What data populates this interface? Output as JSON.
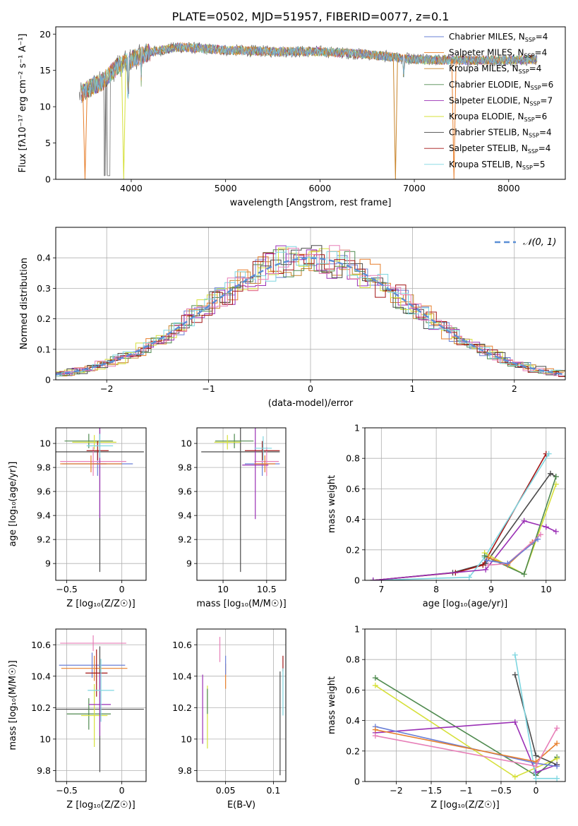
{
  "title": "PLATE=0502, MJD=51957, FIBERID=0077, z=0.1",
  "colors": {
    "c_miles": "#6a7fd6",
    "s_miles": "#e77f2c",
    "k_miles": "#c8842a",
    "c_elodie": "#4f8a4f",
    "s_elodie": "#9a2fb5",
    "k_elodie": "#d6e03a",
    "c_stelib": "#4a4a4a",
    "s_stelib": "#a31515",
    "k_stelib": "#7dd6e0",
    "pink": "#e77fb8",
    "green_bright": "#8fe05a",
    "normal": "#5b8fd6"
  },
  "chart_data": [
    {
      "id": "spectrum",
      "type": "line",
      "xlabel": "wavelength [Angstrom, rest frame]",
      "ylabel": "Flux [fλ10⁻¹⁷ erg cm⁻² s⁻¹ A⁻¹]",
      "xlim": [
        3200,
        8600
      ],
      "ylim": [
        0,
        21
      ],
      "xticks": [
        4000,
        5000,
        6000,
        7000,
        8000
      ],
      "yticks": [
        0,
        5,
        10,
        15,
        20
      ],
      "grid": false,
      "legend_position": "right",
      "series": [
        {
          "name": "Chabrier MILES, N_SSP=4",
          "label": "Chabrier MILES, N",
          "sub": "SSP",
          "tail": "=4",
          "color_key": "c_miles"
        },
        {
          "name": "Salpeter MILES, N_SSP=4",
          "label": "Salpeter MILES, N",
          "sub": "SSP",
          "tail": "=4",
          "color_key": "s_miles"
        },
        {
          "name": "Kroupa MILES, N_SSP=4",
          "label": "Kroupa MILES, N",
          "sub": "SSP",
          "tail": "=4",
          "color_key": "k_miles"
        },
        {
          "name": "Chabrier ELODIE, N_SSP=6",
          "label": "Chabrier ELODIE, N",
          "sub": "SSP",
          "tail": "=6",
          "color_key": "c_elodie"
        },
        {
          "name": "Salpeter ELODIE, N_SSP=7",
          "label": "Salpeter ELODIE, N",
          "sub": "SSP",
          "tail": "=7",
          "color_key": "s_elodie"
        },
        {
          "name": "Kroupa ELODIE, N_SSP=6",
          "label": "Kroupa ELODIE, N",
          "sub": "SSP",
          "tail": "=6",
          "color_key": "k_elodie"
        },
        {
          "name": "Chabrier STELIB, N_SSP=4",
          "label": "Chabrier STELIB, N",
          "sub": "SSP",
          "tail": "=4",
          "color_key": "c_stelib"
        },
        {
          "name": "Salpeter STELIB, N_SSP=4",
          "label": "Salpeter STELIB, N",
          "sub": "SSP",
          "tail": "=4",
          "color_key": "s_stelib"
        },
        {
          "name": "Kroupa STELIB, N_SSP=5",
          "label": "Kroupa STELIB, N",
          "sub": "SSP",
          "tail": "=5",
          "color_key": "k_stelib"
        }
      ],
      "data_sketch": {
        "observed_x": [
          3450,
          3550,
          3700,
          3850,
          4000,
          4200,
          4500,
          5000,
          5500,
          6000,
          6500,
          7000,
          7500,
          8000,
          8300
        ],
        "observed_y": [
          11.5,
          12.5,
          13.5,
          15.5,
          16.5,
          17.5,
          18.2,
          17.8,
          17.6,
          17.6,
          17.2,
          16.5,
          16.4,
          16.4,
          16.5
        ],
        "model_drops": [
          {
            "x": 3510,
            "color_key": "s_miles"
          },
          {
            "x": 3920,
            "color_key": "k_elodie"
          },
          {
            "x": 6800,
            "color_key": "k_miles"
          },
          {
            "x": 7420,
            "color_key": "s_miles"
          }
        ]
      }
    },
    {
      "id": "residuals",
      "type": "histogram",
      "xlabel": "(data-model)/error",
      "ylabel": "Normed distribution",
      "xlim": [
        -2.5,
        2.5
      ],
      "ylim": [
        0,
        0.5
      ],
      "xticks": [
        -2,
        -1,
        0,
        1,
        2
      ],
      "yticks": [
        0.0,
        0.1,
        0.2,
        0.3,
        0.4
      ],
      "grid": true,
      "legend_position": "top-right",
      "legend_label": "𝒩(0, 1)",
      "bin_width": 0.1,
      "bin_start": -2.5,
      "normal_curve": {
        "mu": 0,
        "sigma": 1
      }
    },
    {
      "id": "age_vs_Z",
      "type": "errorbar",
      "xlabel": "Z [log₁₀(Z/Z☉)]",
      "ylabel": "age  [log₁₀(age/yr)]",
      "xlim": [
        -0.6,
        0.22
      ],
      "ylim": [
        8.86,
        10.13
      ],
      "xticks": [
        -0.5,
        0.0
      ],
      "yticks": [
        9.0,
        9.2,
        9.4,
        9.6,
        9.8,
        10.0
      ],
      "grid": true,
      "points": [
        {
          "x": -0.2,
          "y": 9.93,
          "xerr": 0.4,
          "yerr": 1.0,
          "color_key": "c_stelib"
        },
        {
          "x": -0.22,
          "y": 9.83,
          "xerr": 0.32,
          "yerr": 0.1,
          "color_key": "c_miles"
        },
        {
          "x": -0.26,
          "y": 9.85,
          "xerr": 0.3,
          "yerr": 0.12,
          "color_key": "pink"
        },
        {
          "x": -0.3,
          "y": 10.02,
          "xerr": 0.22,
          "yerr": 0.06,
          "color_key": "c_elodie"
        },
        {
          "x": -0.25,
          "y": 10.01,
          "xerr": 0.2,
          "yerr": 0.06,
          "color_key": "k_elodie"
        },
        {
          "x": -0.2,
          "y": 9.83,
          "xerr": 0.06,
          "yerr": 0.45,
          "color_key": "s_elodie"
        },
        {
          "x": -0.22,
          "y": 9.94,
          "xerr": 0.1,
          "yerr": 0.08,
          "color_key": "s_stelib"
        },
        {
          "x": -0.2,
          "y": 9.98,
          "xerr": 0.12,
          "yerr": 0.1,
          "color_key": "k_stelib"
        },
        {
          "x": -0.28,
          "y": 9.83,
          "xerr": 0.28,
          "yerr": 0.07,
          "color_key": "s_miles"
        }
      ]
    },
    {
      "id": "age_vs_mass",
      "type": "errorbar",
      "xlabel": "mass [log₁₀(M/M☉)]",
      "xlim": [
        9.7,
        10.72
      ],
      "ylim": [
        8.86,
        10.13
      ],
      "xticks": [
        10.0,
        10.5
      ],
      "yticks": [
        9.0,
        9.2,
        9.4,
        9.6,
        9.8,
        10.0
      ],
      "grid": true,
      "points": [
        {
          "x": 10.2,
          "y": 9.93,
          "xerr": 0.45,
          "yerr": 1.0,
          "color_key": "c_stelib"
        },
        {
          "x": 10.45,
          "y": 9.83,
          "xerr": 0.2,
          "yerr": 0.1,
          "color_key": "c_miles"
        },
        {
          "x": 10.5,
          "y": 9.85,
          "xerr": 0.14,
          "yerr": 0.12,
          "color_key": "pink"
        },
        {
          "x": 10.13,
          "y": 10.02,
          "xerr": 0.22,
          "yerr": 0.06,
          "color_key": "c_elodie"
        },
        {
          "x": 10.05,
          "y": 10.01,
          "xerr": 0.15,
          "yerr": 0.06,
          "color_key": "k_elodie"
        },
        {
          "x": 10.37,
          "y": 9.82,
          "xerr": 0.15,
          "yerr": 0.45,
          "color_key": "s_elodie"
        },
        {
          "x": 10.45,
          "y": 9.94,
          "xerr": 0.2,
          "yerr": 0.08,
          "color_key": "s_stelib"
        },
        {
          "x": 10.46,
          "y": 9.96,
          "xerr": 0.1,
          "yerr": 0.1,
          "color_key": "k_stelib"
        },
        {
          "x": 10.48,
          "y": 9.83,
          "xerr": 0.12,
          "yerr": 0.07,
          "color_key": "s_miles"
        }
      ]
    },
    {
      "id": "massweight_vs_age",
      "type": "line",
      "xlabel": "age  [log₁₀(age/yr)]",
      "ylabel": "mass weight",
      "xlim": [
        6.7,
        10.35
      ],
      "ylim": [
        0.0,
        1.0
      ],
      "xticks": [
        7,
        8,
        9,
        10
      ],
      "yticks": [
        0.0,
        0.2,
        0.4,
        0.6,
        0.8,
        1.0
      ],
      "grid": true,
      "series": [
        {
          "name": "c_stelib",
          "color_key": "c_stelib",
          "x": [
            6.85,
            8.3,
            8.9,
            10.08,
            10.18
          ],
          "y": [
            0.0,
            0.05,
            0.11,
            0.7,
            0.68
          ]
        },
        {
          "name": "s_stelib",
          "color_key": "s_stelib",
          "x": [
            6.85,
            8.35,
            8.85,
            10.0
          ],
          "y": [
            0.0,
            0.05,
            0.1,
            0.83
          ]
        },
        {
          "name": "k_stelib",
          "color_key": "k_stelib",
          "x": [
            6.85,
            8.6,
            8.88,
            10.05
          ],
          "y": [
            0.0,
            0.02,
            0.15,
            0.83
          ]
        },
        {
          "name": "s_elodie",
          "color_key": "s_elodie",
          "x": [
            6.85,
            8.9,
            9.6,
            10.0,
            10.18
          ],
          "y": [
            0.0,
            0.07,
            0.39,
            0.35,
            0.32
          ]
        },
        {
          "name": "k_elodie",
          "color_key": "k_elodie",
          "x": [
            8.88,
            9.6,
            10.18
          ],
          "y": [
            0.18,
            0.04,
            0.63
          ]
        },
        {
          "name": "c_elodie",
          "color_key": "c_elodie",
          "x": [
            8.88,
            9.6,
            10.18
          ],
          "y": [
            0.16,
            0.04,
            0.68
          ]
        },
        {
          "name": "s_miles",
          "color_key": "s_miles",
          "x": [
            8.95,
            9.3,
            9.75
          ],
          "y": [
            0.15,
            0.1,
            0.25
          ]
        },
        {
          "name": "pink",
          "color_key": "pink",
          "x": [
            8.95,
            9.3,
            9.9
          ],
          "y": [
            0.1,
            0.11,
            0.3
          ]
        },
        {
          "name": "c_miles",
          "color_key": "c_miles",
          "x": [
            8.92,
            9.3,
            9.85
          ],
          "y": [
            0.13,
            0.11,
            0.27
          ]
        }
      ]
    },
    {
      "id": "mass_vs_Z",
      "type": "errorbar",
      "xlabel": "Z [log₁₀(Z/Z☉)]",
      "ylabel": "mass [log₁₀(M/M☉)]",
      "xlim": [
        -0.6,
        0.22
      ],
      "ylim": [
        9.73,
        10.7
      ],
      "xticks": [
        -0.5,
        0.0
      ],
      "yticks": [
        9.8,
        10.0,
        10.2,
        10.4,
        10.6
      ],
      "grid": true,
      "points": [
        {
          "x": -0.2,
          "y": 10.19,
          "xerr": 0.4,
          "yerr": 0.4,
          "color_key": "c_stelib"
        },
        {
          "x": -0.3,
          "y": 10.16,
          "xerr": 0.2,
          "yerr": 0.1,
          "color_key": "c_elodie"
        },
        {
          "x": -0.25,
          "y": 10.15,
          "xerr": 0.12,
          "yerr": 0.2,
          "color_key": "k_elodie"
        },
        {
          "x": -0.2,
          "y": 10.22,
          "xerr": 0.1,
          "yerr": 0.2,
          "color_key": "s_elodie"
        },
        {
          "x": -0.27,
          "y": 10.47,
          "xerr": 0.3,
          "yerr": 0.08,
          "color_key": "c_miles"
        },
        {
          "x": -0.25,
          "y": 10.45,
          "xerr": 0.3,
          "yerr": 0.08,
          "color_key": "s_miles"
        },
        {
          "x": -0.23,
          "y": 10.42,
          "xerr": 0.1,
          "yerr": 0.15,
          "color_key": "s_stelib"
        },
        {
          "x": -0.19,
          "y": 10.31,
          "xerr": 0.12,
          "yerr": 0.2,
          "color_key": "k_stelib"
        },
        {
          "x": -0.26,
          "y": 10.61,
          "xerr": 0.3,
          "yerr": 0.05,
          "color_key": "pink"
        }
      ]
    },
    {
      "id": "mass_vs_EBV",
      "type": "errorbar",
      "xlabel": "E(B-V)",
      "xlim": [
        0.02,
        0.113
      ],
      "ylim": [
        9.73,
        10.7
      ],
      "xticks": [
        0.05,
        0.1
      ],
      "yticks": [
        9.8,
        10.0,
        10.2,
        10.4,
        10.6
      ],
      "grid": true,
      "points": [
        {
          "x": 0.026,
          "y": 10.19,
          "xerr": 0.0,
          "yerr": 0.22,
          "color_key": "s_elodie"
        },
        {
          "x": 0.031,
          "y": 10.14,
          "xerr": 0.0,
          "yerr": 0.2,
          "color_key": "k_elodie"
        },
        {
          "x": 0.031,
          "y": 10.24,
          "xerr": 0.0,
          "yerr": 0.08,
          "color_key": "c_elodie"
        },
        {
          "x": 0.044,
          "y": 10.57,
          "xerr": 0.0,
          "yerr": 0.08,
          "color_key": "pink"
        },
        {
          "x": 0.05,
          "y": 10.4,
          "xerr": 0.0,
          "yerr": 0.08,
          "color_key": "s_miles"
        },
        {
          "x": 0.05,
          "y": 10.47,
          "xerr": 0.0,
          "yerr": 0.06,
          "color_key": "c_miles"
        },
        {
          "x": 0.107,
          "y": 10.1,
          "xerr": 0.0,
          "yerr": 0.33,
          "color_key": "c_stelib"
        },
        {
          "x": 0.11,
          "y": 10.48,
          "xerr": 0.0,
          "yerr": 0.05,
          "color_key": "s_stelib"
        },
        {
          "x": 0.11,
          "y": 10.3,
          "xerr": 0.0,
          "yerr": 0.15,
          "color_key": "k_stelib"
        }
      ]
    },
    {
      "id": "massweight_vs_Z",
      "type": "line",
      "xlabel": "Z [log₁₀(Z/Z☉)]",
      "ylabel": "mass weight",
      "xlim": [
        -2.45,
        0.42
      ],
      "ylim": [
        0.0,
        1.0
      ],
      "xticks": [
        -2.0,
        -1.5,
        -1.0,
        -0.5,
        0.0
      ],
      "yticks": [
        0.0,
        0.2,
        0.4,
        0.6,
        0.8,
        1.0
      ],
      "grid": true,
      "series": [
        {
          "name": "c_elodie",
          "color_key": "c_elodie",
          "x": [
            -2.3,
            0.0,
            0.3
          ],
          "y": [
            0.68,
            0.04,
            0.16
          ]
        },
        {
          "name": "k_elodie",
          "color_key": "k_elodie",
          "x": [
            -2.3,
            -0.3,
            0.3
          ],
          "y": [
            0.63,
            0.03,
            0.15
          ]
        },
        {
          "name": "s_elodie",
          "color_key": "s_elodie",
          "x": [
            -2.3,
            -0.3,
            0.0,
            0.3
          ],
          "y": [
            0.32,
            0.39,
            0.06,
            0.11
          ]
        },
        {
          "name": "c_stelib",
          "color_key": "c_stelib",
          "x": [
            -0.3,
            0.0,
            0.3
          ],
          "y": [
            0.7,
            0.17,
            0.11
          ]
        },
        {
          "name": "k_stelib",
          "color_key": "k_stelib",
          "x": [
            -0.3,
            0.0,
            0.3
          ],
          "y": [
            0.83,
            0.02,
            0.02
          ]
        },
        {
          "name": "c_miles",
          "color_key": "c_miles",
          "x": [
            -2.3,
            0.0,
            0.3
          ],
          "y": [
            0.36,
            0.12,
            0.1
          ]
        },
        {
          "name": "s_miles",
          "color_key": "s_miles",
          "x": [
            -2.3,
            0.0,
            0.3
          ],
          "y": [
            0.34,
            0.13,
            0.25
          ]
        },
        {
          "name": "pink",
          "color_key": "pink",
          "x": [
            -2.3,
            0.0,
            0.3
          ],
          "y": [
            0.3,
            0.1,
            0.35
          ]
        }
      ]
    }
  ]
}
